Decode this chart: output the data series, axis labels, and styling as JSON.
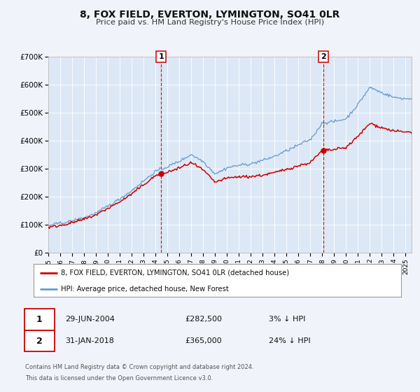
{
  "title": "8, FOX FIELD, EVERTON, LYMINGTON, SO41 0LR",
  "subtitle": "Price paid vs. HM Land Registry's House Price Index (HPI)",
  "background_color": "#f0f4fa",
  "plot_bg_color": "#dce8f5",
  "ylim": [
    0,
    700000
  ],
  "yticks": [
    0,
    100000,
    200000,
    300000,
    400000,
    500000,
    600000,
    700000
  ],
  "ytick_labels": [
    "£0",
    "£100K",
    "£200K",
    "£300K",
    "£400K",
    "£500K",
    "£600K",
    "£700K"
  ],
  "xlim_start": 1995.0,
  "xlim_end": 2025.5,
  "legend_label_red": "8, FOX FIELD, EVERTON, LYMINGTON, SO41 0LR (detached house)",
  "legend_label_blue": "HPI: Average price, detached house, New Forest",
  "sale1_date": 2004.49,
  "sale1_price": 282500,
  "sale2_date": 2018.08,
  "sale2_price": 365000,
  "sale1_text": "29-JUN-2004",
  "sale1_amount": "£282,500",
  "sale1_note": "3% ↓ HPI",
  "sale2_text": "31-JAN-2018",
  "sale2_amount": "£365,000",
  "sale2_note": "24% ↓ HPI",
  "footer1": "Contains HM Land Registry data © Crown copyright and database right 2024.",
  "footer2": "This data is licensed under the Open Government Licence v3.0.",
  "red_color": "#cc0000",
  "blue_color": "#6699cc",
  "hpi_years": [
    1995,
    1996,
    1997,
    1998,
    1999,
    2000,
    2001,
    2002,
    2003,
    2004,
    2005,
    2006,
    2007,
    2008,
    2009,
    2010,
    2011,
    2012,
    2013,
    2014,
    2015,
    2016,
    2017,
    2018,
    2019,
    2020,
    2021,
    2022,
    2023,
    2024,
    2025
  ],
  "hpi_values": [
    97000,
    105000,
    115000,
    128000,
    145000,
    170000,
    195000,
    225000,
    260000,
    295000,
    310000,
    330000,
    355000,
    330000,
    285000,
    305000,
    315000,
    320000,
    330000,
    345000,
    365000,
    385000,
    405000,
    465000,
    470000,
    480000,
    530000,
    590000,
    570000,
    555000,
    550000
  ]
}
